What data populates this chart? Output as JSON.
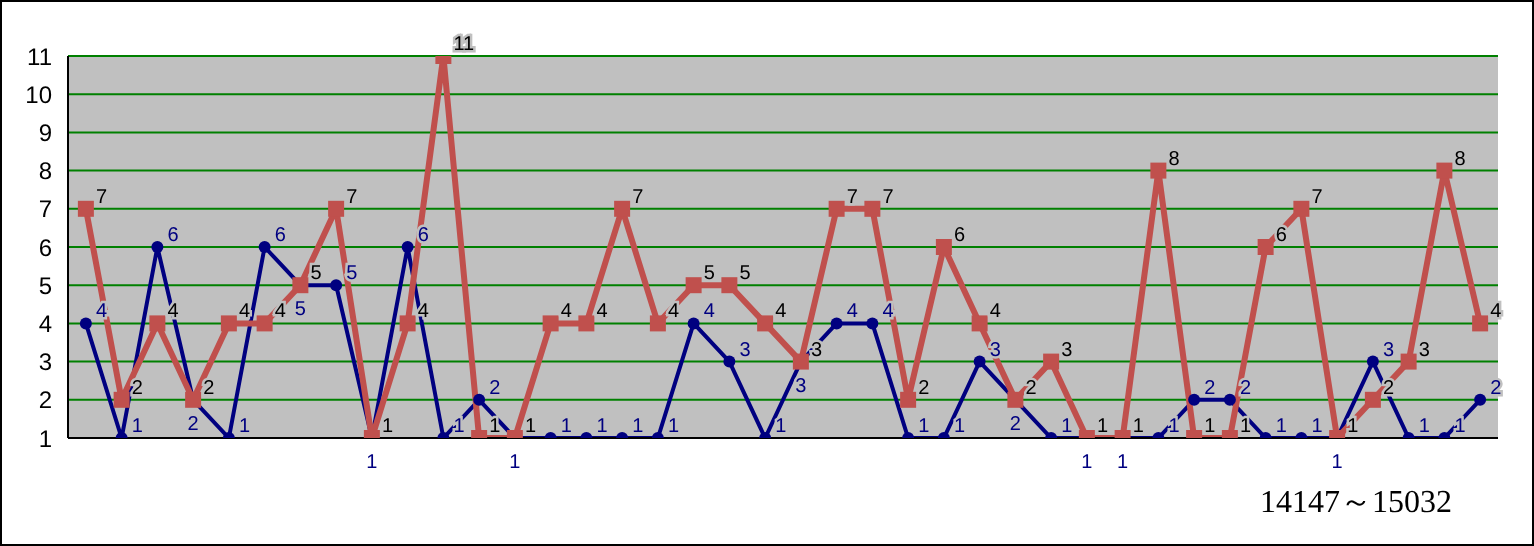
{
  "chart_data": {
    "type": "line",
    "categories": [
      null,
      null,
      null,
      null,
      null,
      null,
      null,
      null,
      null,
      null,
      null,
      null,
      null,
      null,
      null,
      null,
      null,
      null,
      null,
      null,
      null,
      null,
      null,
      null,
      null,
      null,
      null,
      null,
      null,
      null,
      null,
      null,
      null,
      null,
      null,
      null,
      null,
      null,
      null,
      null
    ],
    "series": [
      {
        "color": "#000080",
        "marker": "circle",
        "values": [
          4,
          1,
          6,
          2,
          1,
          6,
          5,
          5,
          1,
          6,
          1,
          2,
          1,
          1,
          1,
          1,
          1,
          4,
          3,
          1,
          3,
          4,
          4,
          1,
          1,
          3,
          2,
          1,
          1,
          1,
          1,
          2,
          2,
          1,
          1,
          1,
          3,
          1,
          1,
          2
        ]
      },
      {
        "color": "#c0504d",
        "marker": "square",
        "values": [
          7,
          2,
          4,
          2,
          4,
          4,
          5,
          7,
          1,
          4,
          11,
          1,
          1,
          4,
          4,
          7,
          4,
          5,
          5,
          4,
          3,
          7,
          7,
          2,
          6,
          4,
          2,
          3,
          1,
          1,
          8,
          1,
          1,
          6,
          7,
          1,
          2,
          3,
          8,
          4
        ]
      }
    ],
    "ylim": [
      1,
      11
    ],
    "yticks": [
      1,
      2,
      3,
      4,
      5,
      6,
      7,
      8,
      9,
      10,
      11
    ],
    "grid": "y",
    "data_labels": true,
    "legend": false,
    "tick_labels": "y",
    "annotations": [
      "14147～15032"
    ]
  }
}
